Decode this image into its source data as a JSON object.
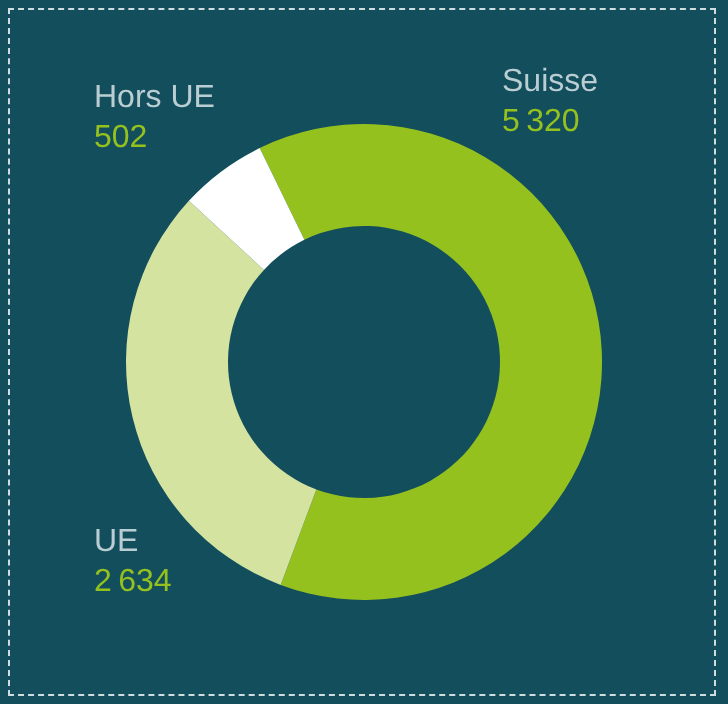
{
  "chart_data": {
    "type": "donut",
    "categories": [
      "Suisse",
      "UE",
      "Hors UE"
    ],
    "values": [
      5320,
      2634,
      502
    ],
    "colors": [
      "#95c11f",
      "#d4e3a0",
      "#ffffff"
    ],
    "data_labels": true,
    "legend": false
  }
}
